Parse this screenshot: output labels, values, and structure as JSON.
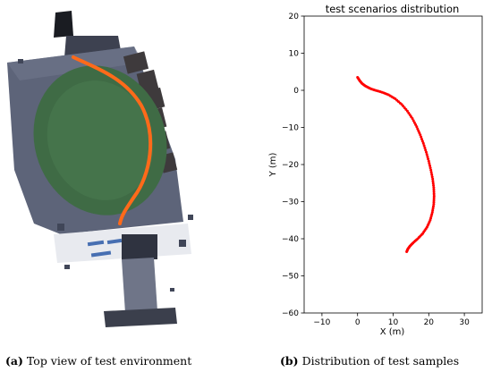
{
  "figure": {
    "panel_a": {
      "caption_label": "(a)",
      "caption_text": "Top view of test environment",
      "image_description_name": "point-cloud-top-view",
      "colors": {
        "ground": "#5a6278",
        "field": "#3f6b45",
        "trajectory": "#ff6a1a"
      }
    },
    "panel_b": {
      "caption_label": "(b)",
      "caption_text": "Distribution of test samples"
    }
  },
  "chart_data": {
    "type": "scatter",
    "title": "test scenarios distribution",
    "xlabel": "X (m)",
    "ylabel": "Y (m)",
    "xlim": [
      -15,
      35
    ],
    "ylim": [
      -60,
      20
    ],
    "xticks": [
      -10,
      0,
      10,
      20,
      30
    ],
    "yticks": [
      -60,
      -50,
      -40,
      -30,
      -20,
      -10,
      0,
      10,
      20
    ],
    "grid": false,
    "color": "#ff0000",
    "series": [
      {
        "points": [
          [
            0.0,
            3.5
          ],
          [
            0.6,
            2.6
          ],
          [
            1.3,
            1.8
          ],
          [
            2.3,
            1.1
          ],
          [
            3.5,
            0.5
          ],
          [
            5.0,
            0.0
          ],
          [
            6.8,
            -0.5
          ],
          [
            8.7,
            -1.2
          ],
          [
            10.6,
            -2.3
          ],
          [
            12.4,
            -3.8
          ],
          [
            14.0,
            -5.6
          ],
          [
            15.4,
            -7.6
          ],
          [
            16.6,
            -9.8
          ],
          [
            17.6,
            -12.0
          ],
          [
            18.5,
            -14.3
          ],
          [
            19.3,
            -16.7
          ],
          [
            20.0,
            -19.1
          ],
          [
            20.6,
            -21.5
          ],
          [
            21.1,
            -23.9
          ],
          [
            21.4,
            -26.2
          ],
          [
            21.5,
            -28.5
          ],
          [
            21.4,
            -30.7
          ],
          [
            21.0,
            -32.9
          ],
          [
            20.4,
            -35.0
          ],
          [
            19.5,
            -36.9
          ],
          [
            18.3,
            -38.6
          ],
          [
            16.9,
            -40.0
          ],
          [
            15.6,
            -41.1
          ],
          [
            14.7,
            -42.0
          ],
          [
            14.1,
            -42.8
          ],
          [
            13.8,
            -43.5
          ]
        ]
      }
    ]
  }
}
